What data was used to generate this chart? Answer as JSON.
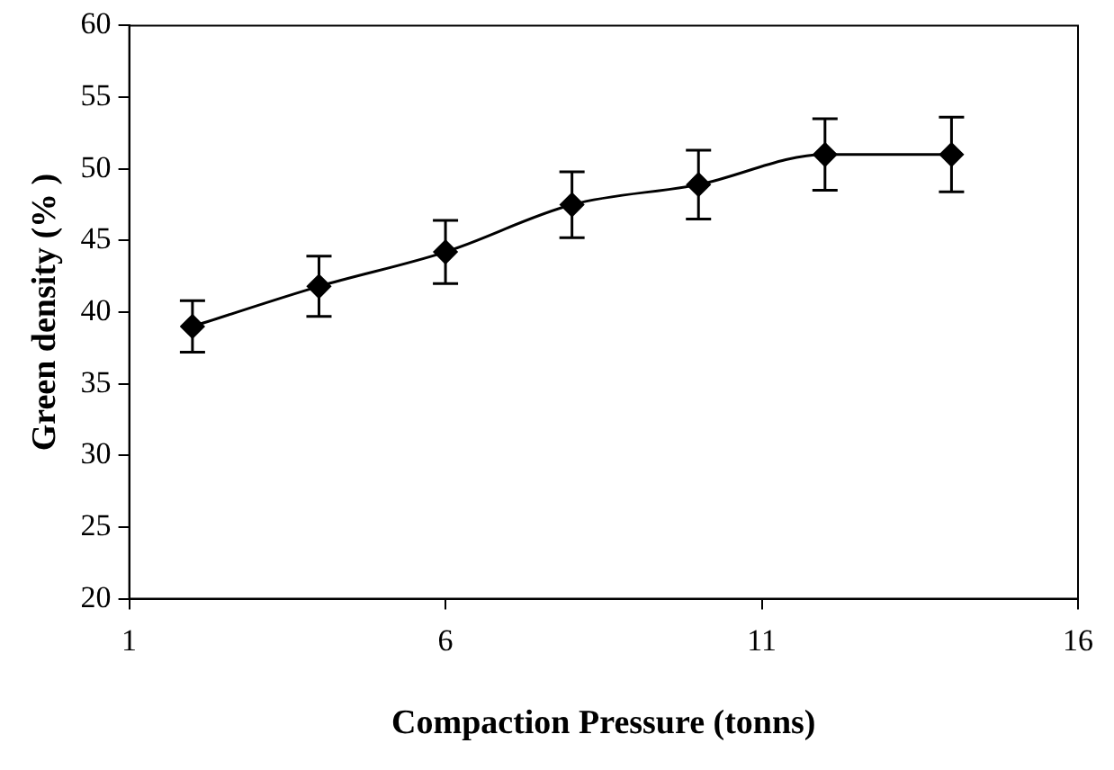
{
  "chart_data": {
    "type": "line",
    "xlabel": "Compaction Pressure (tonns)",
    "ylabel": "Green density (% )",
    "x": [
      2,
      4,
      6,
      8,
      10,
      12,
      14
    ],
    "series": [
      {
        "color": "#000000",
        "values": [
          39,
          41.8,
          44.2,
          47.5,
          48.9,
          51,
          51
        ],
        "errors": [
          1.8,
          2.1,
          2.2,
          2.3,
          2.4,
          2.5,
          2.6
        ]
      }
    ],
    "xlim": [
      1,
      16
    ],
    "xticks": [
      1,
      6,
      11,
      16
    ],
    "ylim": [
      20,
      60
    ],
    "yticks": [
      20,
      25,
      30,
      35,
      40,
      45,
      50,
      55,
      60
    ],
    "grid": false,
    "legend": false,
    "marker": "diamond",
    "line_style": "solid"
  }
}
